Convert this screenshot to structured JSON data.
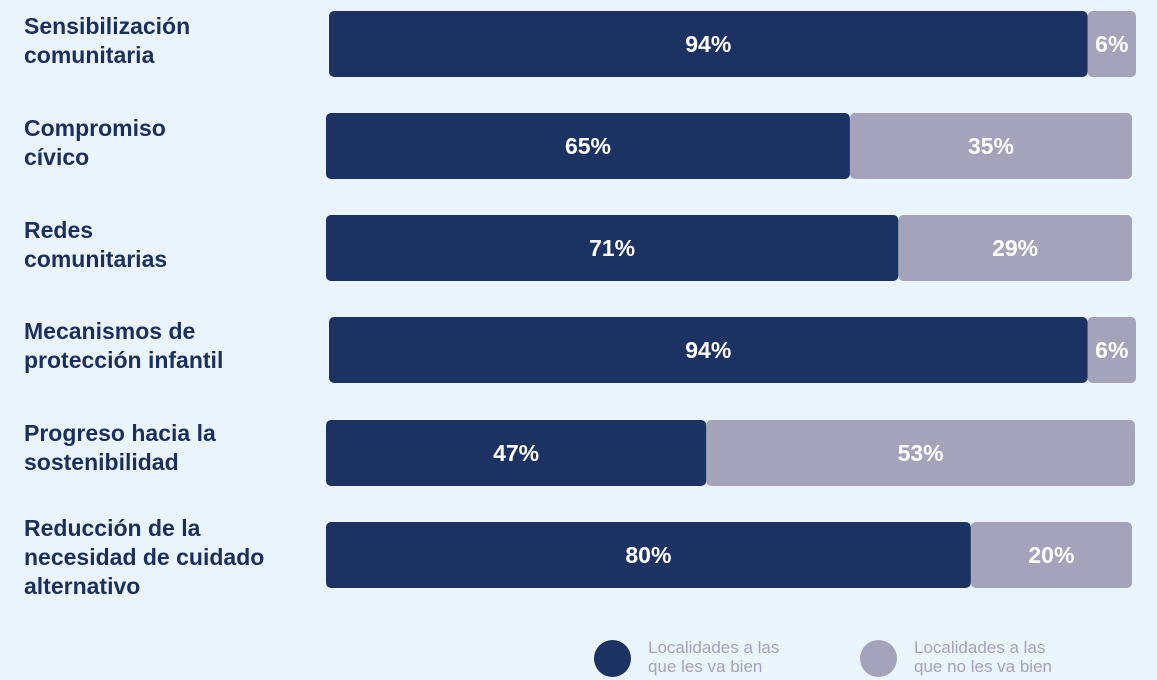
{
  "colors": {
    "background": "#eaf4fd",
    "positive": "#1b3263",
    "negative": "#a4a3ba",
    "label": "#1b2f5e"
  },
  "chart_data": {
    "type": "bar",
    "orientation": "horizontal",
    "stacked": true,
    "categories": [
      "Sensibilización comunitaria",
      "Compromiso cívico",
      "Redes comunitarias",
      "Mecanismos de protección infantil",
      "Progreso hacia la sostenibilidad",
      "Reducción de la necesidad de cuidado alternativo"
    ],
    "category_lines": [
      [
        "Sensibilización",
        "comunitaria"
      ],
      [
        "Compromiso",
        "cívico"
      ],
      [
        "Redes",
        "comunitarias"
      ],
      [
        "Mecanismos de",
        "protección infantil"
      ],
      [
        "Progreso hacia la",
        "sostenibilidad"
      ],
      [
        "Reducción de la",
        "necesidad de cuidado",
        "alternativo"
      ]
    ],
    "series": [
      {
        "name": "Localidades a las que les va bien",
        "name_lines": [
          "Localidades a las",
          "que les va bien"
        ],
        "color": "#1b3263",
        "values": [
          94,
          65,
          71,
          94,
          47,
          80
        ],
        "labels": [
          "94%",
          "65%",
          "71%",
          "94%",
          "47%",
          "80%"
        ]
      },
      {
        "name": "Localidades a las que no les va bien",
        "name_lines": [
          "Localidades a las",
          "que no les va bien"
        ],
        "color": "#a4a3ba",
        "values": [
          6,
          35,
          29,
          6,
          53,
          20
        ],
        "labels": [
          "6%",
          "35%",
          "29%",
          "6%",
          "53%",
          "20%"
        ]
      }
    ],
    "xlim": [
      0,
      100
    ],
    "unit": "%",
    "grid": false,
    "legend_position": "bottom-right"
  }
}
